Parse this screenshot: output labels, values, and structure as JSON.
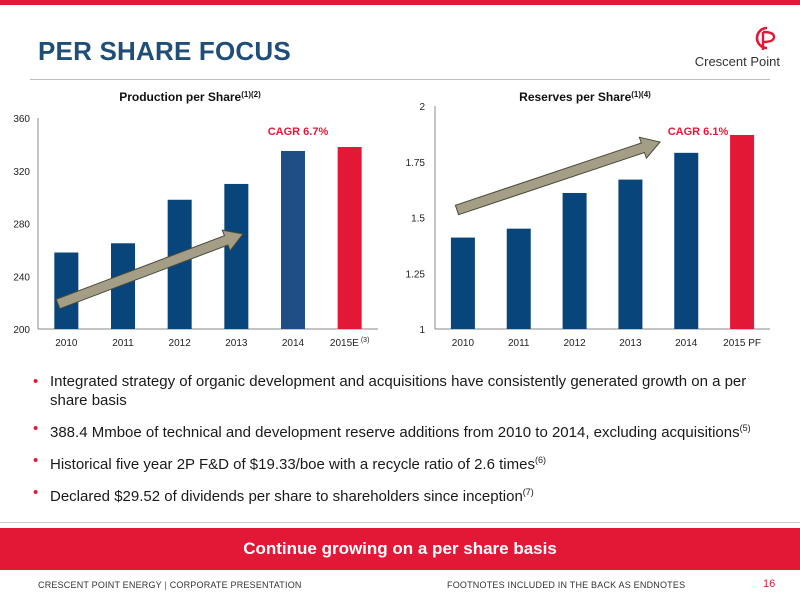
{
  "slide": {
    "title": "PER SHARE FOCUS",
    "logo_text": "Crescent Point",
    "colors": {
      "accent_red": "#e31837",
      "navy": "#1f4e79",
      "bar": "#08457a",
      "bar_2014_left": "#1f4d85",
      "arrow": "#a39e85"
    }
  },
  "chart_data": [
    {
      "type": "bar",
      "title": "Production per Share",
      "title_sup": "(1)(2)",
      "categories": [
        "2010",
        "2011",
        "2012",
        "2013",
        "2014",
        "2015E"
      ],
      "category_sups": [
        "",
        "",
        "",
        "",
        "",
        "(3)"
      ],
      "values": [
        258,
        265,
        298,
        310,
        335,
        338
      ],
      "ylim": [
        200,
        360
      ],
      "yticks": [
        "200",
        "240",
        "280",
        "320",
        "360"
      ],
      "annotation": "CAGR 6.7%",
      "grid": false
    },
    {
      "type": "bar",
      "title": "Reserves per Share",
      "title_sup": "(1)(4)",
      "categories": [
        "2010",
        "2011",
        "2012",
        "2013",
        "2014",
        "2015 PF"
      ],
      "category_sups": [
        "",
        "",
        "",
        "",
        "",
        ""
      ],
      "values": [
        1.41,
        1.45,
        1.61,
        1.67,
        1.79,
        1.87
      ],
      "ylim": [
        1,
        2
      ],
      "yticks": [
        "1",
        "1.25",
        "1.5",
        "1.75",
        "2"
      ],
      "annotation": "CAGR 6.1%",
      "grid": false
    }
  ],
  "bullets": [
    {
      "text": "Integrated strategy of organic development and acquisitions have consistently generated growth on a per share basis",
      "sup": ""
    },
    {
      "text": "388.4 Mmboe of technical and development reserve additions from 2010 to 2014, excluding acquisitions",
      "sup": "(5)"
    },
    {
      "text": "Historical five year 2P F&D of $19.33/boe with a recycle ratio of 2.6 times",
      "sup": "(6)"
    },
    {
      "text": "Declared $29.52 of dividends per share to shareholders since inception",
      "sup": "(7)"
    }
  ],
  "banner": "Continue growing on a per share basis",
  "footer": {
    "left_a": "CRESCENT POINT ENERGY",
    "sep": "|",
    "left_b": "CORPORATE PRESENTATION",
    "middle": "FOOTNOTES INCLUDED IN THE BACK AS ENDNOTES",
    "page": "16"
  }
}
